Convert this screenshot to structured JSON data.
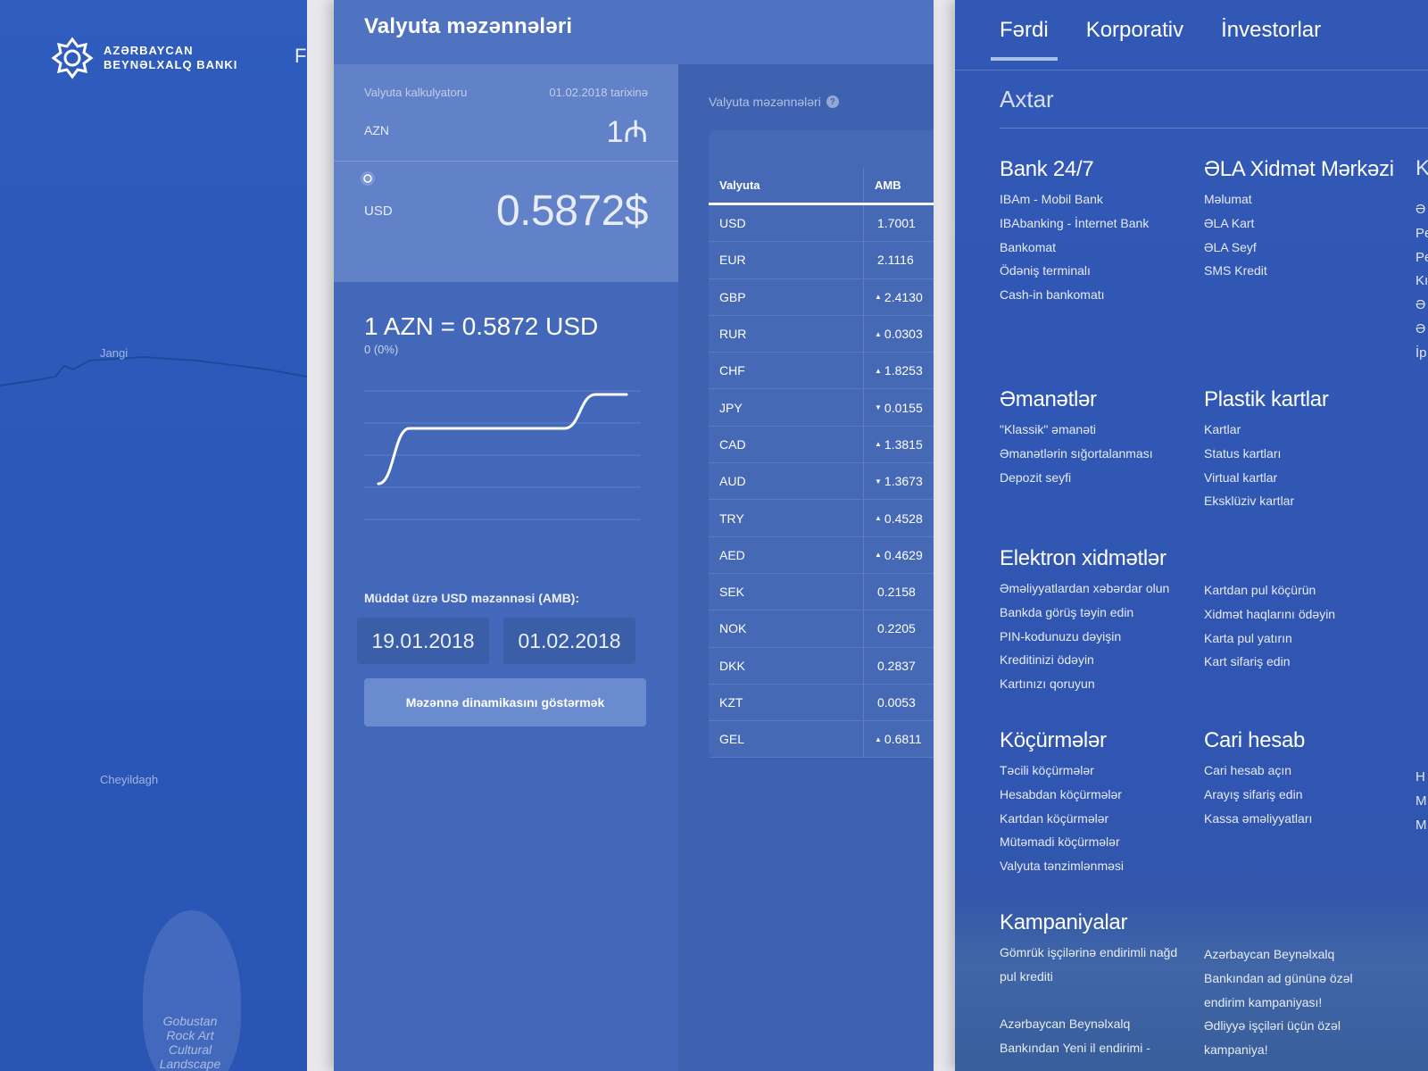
{
  "map": {
    "logo_line1": "AZƏRBAYCAN",
    "logo_line2": "BEYNƏLXALQ BANKI",
    "edge_letter": "F",
    "labels": [
      "Jangi",
      "Cheyildagh"
    ],
    "gobustan": [
      "Gobustan",
      "Rock Art",
      "Cultural",
      "Landscape"
    ]
  },
  "currency": {
    "title": "Valyuta məzənnələri",
    "calculator_label": "Valyuta kalkulyatoru",
    "calculator_date": "01.02.2018 tarixinə",
    "from_code": "AZN",
    "from_value": "1₼",
    "to_code": "USD",
    "to_value": "0.5872$",
    "rate_text": "1 AZN  =  0.5872 USD",
    "rate_change": "0 (0%)",
    "chart_points": [
      0.0,
      0.62,
      0.62,
      0.62,
      0.62,
      0.62,
      0.62,
      1.0,
      1.0
    ],
    "period_label": "Müddət üzrə USD məzənnəsi (AMB):",
    "date_from": "19.01.2018",
    "date_to": "01.02.2018",
    "show_button": "Məzənnə dinamikasını göstərmək",
    "rates_title": "Valyuta məzənnələri",
    "rates_help": "?",
    "table_headers": [
      "Valyuta",
      "AMB"
    ],
    "rows": [
      {
        "code": "USD",
        "value": "1.7001",
        "trend": ""
      },
      {
        "code": "EUR",
        "value": "2.1116",
        "trend": ""
      },
      {
        "code": "GBP",
        "value": "2.4130",
        "trend": "▲"
      },
      {
        "code": "RUR",
        "value": "0.0303",
        "trend": "▲"
      },
      {
        "code": "CHF",
        "value": "1.8253",
        "trend": "▲"
      },
      {
        "code": "JPY",
        "value": "0.0155",
        "trend": "▼"
      },
      {
        "code": "CAD",
        "value": "1.3815",
        "trend": "▲"
      },
      {
        "code": "AUD",
        "value": "1.3673",
        "trend": "▼"
      },
      {
        "code": "TRY",
        "value": "0.4528",
        "trend": "▲"
      },
      {
        "code": "AED",
        "value": "0.4629",
        "trend": "▲"
      },
      {
        "code": "SEK",
        "value": "0.2158",
        "trend": ""
      },
      {
        "code": "NOK",
        "value": "0.2205",
        "trend": ""
      },
      {
        "code": "DKK",
        "value": "0.2837",
        "trend": ""
      },
      {
        "code": "KZT",
        "value": "0.0053",
        "trend": ""
      },
      {
        "code": "GEL",
        "value": "0.6811",
        "trend": "▲"
      }
    ]
  },
  "menu": {
    "tabs": [
      "Fərdi",
      "Korporativ",
      "İnvestorlar"
    ],
    "search_placeholder": "Axtar",
    "sections": [
      {
        "title": "Bank 24/7",
        "items": [
          "IBAm - Mobil Bank",
          "IBAbanking - İnternet Bank",
          "Bankomat",
          "Ödəniş terminalı",
          "Cash-in bankomatı"
        ]
      },
      {
        "title": "ƏLA Xidmət Mərkəzi",
        "items": [
          "Məlumat",
          "ƏLA Kart",
          "ƏLA Seyf",
          "SMS Kredit"
        ]
      },
      {
        "title": "Əmanətlər",
        "items": [
          "\"Klassik\" əmanəti",
          "Əmanətlərin sığortalanması",
          "Depozit seyfi"
        ]
      },
      {
        "title": "Plastik kartlar",
        "items": [
          "Kartlar",
          "Status kartları",
          "Virtual kartlar",
          "Eksklüziv kartlar"
        ]
      },
      {
        "title": "Elektron xidmətlər",
        "items": [
          "Əməliyyatlardan xəbərdar olun",
          "Bankda görüş təyin edin",
          "PIN-kodunuzu dəyişin",
          "Kreditinizi ödəyin",
          "Kartınızı qoruyun"
        ]
      },
      {
        "title": "",
        "items": [
          "Kartdan pul köçürün",
          "Xidmət haqlarını ödəyin",
          "Karta pul yatırın",
          "Kart sifariş edin"
        ]
      },
      {
        "title": "Köçürmələr",
        "items": [
          "Təcili köçürmələr",
          "Hesabdan köçürmələr",
          "Kartdan köçürmələr",
          "Mütəmadi köçürmələr",
          "Valyuta tənzimlənməsi"
        ]
      },
      {
        "title": "Cari hesab",
        "items": [
          "Cari hesab açın",
          "Arayış sifariş edin",
          "Kassa əməliyyatları"
        ]
      },
      {
        "title": "Kampaniyalar",
        "items": [
          "Gömrük işçilərinə endirimli nağd",
          "pul krediti",
          "",
          "Azərbaycan Beynəlxalq",
          "Bankından Yeni il endirimi -"
        ]
      },
      {
        "title": "",
        "items": [
          "Azərbaycan Beynəlxalq",
          "Bankından ad gününə özəl",
          "endirim kampaniyası!",
          "Ədliyyə işçiləri üçün özəl",
          "kampaniya!"
        ]
      }
    ],
    "edge_col_top": [
      "K",
      "Ə",
      "Pe",
      "Pe",
      "Kı",
      "Ə",
      "Ə",
      "İp"
    ],
    "edge_col_bottom": [
      "H",
      "M",
      "M"
    ]
  }
}
